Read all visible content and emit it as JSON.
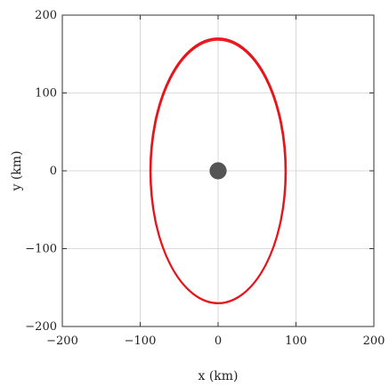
{
  "chart_data": {
    "type": "line",
    "xlabel": "x (km)",
    "ylabel": "y (km)",
    "xlim": [
      -200,
      200
    ],
    "ylim": [
      -200,
      200
    ],
    "xticks": [
      -200,
      -100,
      0,
      100,
      200
    ],
    "yticks": [
      -200,
      -100,
      0,
      100,
      200
    ],
    "xtick_labels": [
      "−200",
      "−100",
      "0",
      "100",
      "200"
    ],
    "ytick_labels": [
      "−200",
      "−100",
      "0",
      "100",
      "200"
    ],
    "grid": true,
    "series": [
      {
        "kind": "orbit",
        "color": "#e8141b",
        "center": [
          0,
          0
        ],
        "semi_axis_x": 87,
        "semi_axis_y": 170
      }
    ],
    "markers": [
      {
        "kind": "central-body",
        "x": 0,
        "y": 0,
        "radius_km": 11,
        "color": "#555555"
      }
    ]
  }
}
